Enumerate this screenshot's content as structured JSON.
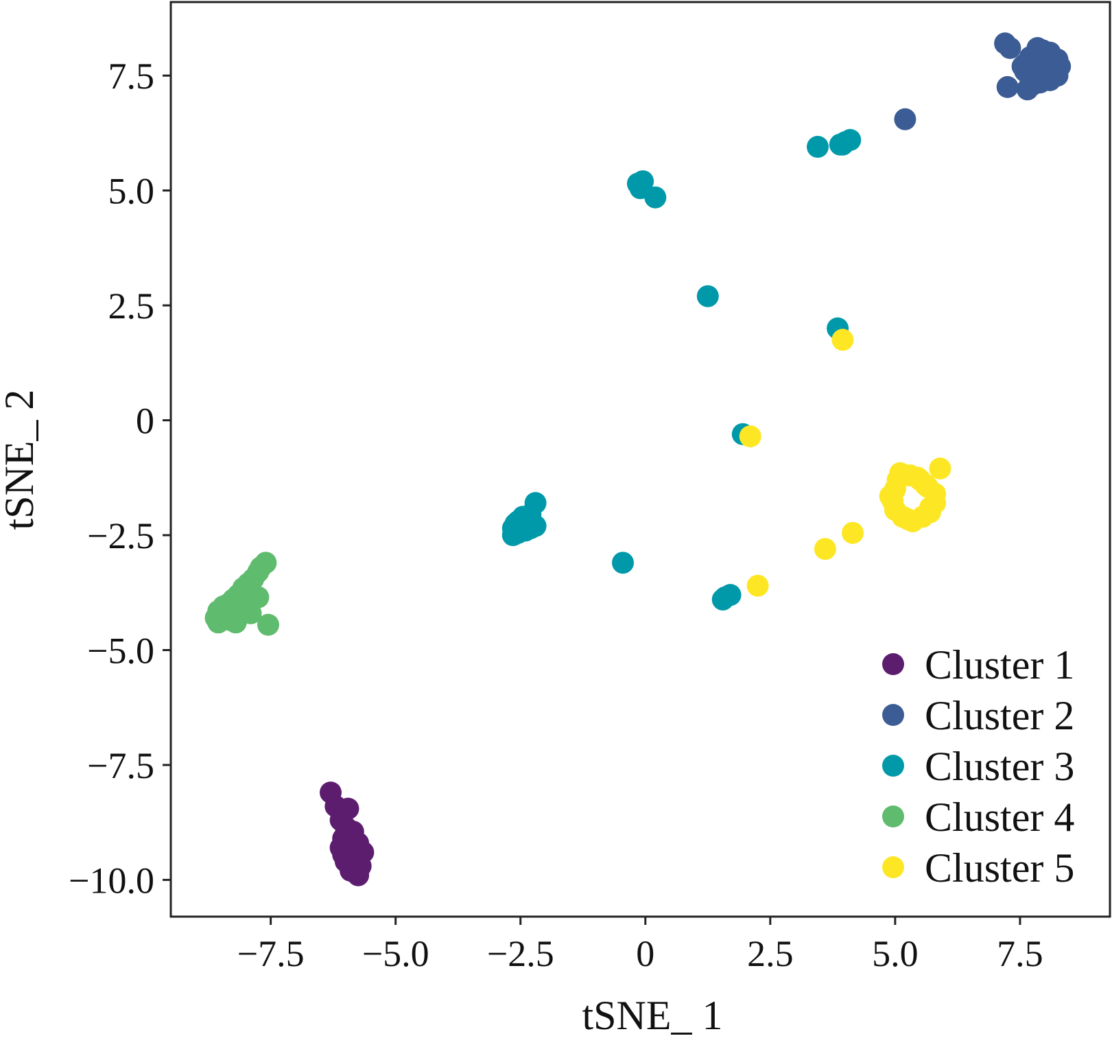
{
  "chart_data": {
    "type": "scatter",
    "title": "",
    "xlabel": "tSNE_ 1",
    "ylabel": "tSNE_ 2",
    "xlim": [
      -9.5,
      9.3
    ],
    "ylim": [
      -10.8,
      9.1
    ],
    "xticks": [
      -7.5,
      -5.0,
      -2.5,
      0,
      2.5,
      5.0,
      7.5
    ],
    "xtick_labels": [
      "−7.5",
      "−5.0",
      "−2.5",
      "0",
      "2.5",
      "5.0",
      "7.5"
    ],
    "yticks": [
      7.5,
      5.0,
      2.5,
      0,
      -2.5,
      -5.0,
      -7.5,
      -10.0
    ],
    "ytick_labels": [
      "7.5",
      "5.0",
      "2.5",
      "0",
      "−2.5",
      "−5.0",
      "−7.5",
      "−10.0"
    ],
    "grid": false,
    "legend_position": "bottom-right",
    "series": [
      {
        "name": "Cluster 1",
        "color": "#5c1d6f",
        "points": [
          [
            -6.3,
            -8.1
          ],
          [
            -6.2,
            -8.4
          ],
          [
            -5.95,
            -8.45
          ],
          [
            -6.1,
            -8.7
          ],
          [
            -6.0,
            -8.85
          ],
          [
            -5.85,
            -8.95
          ],
          [
            -5.95,
            -9.05
          ],
          [
            -6.05,
            -9.1
          ],
          [
            -5.75,
            -9.2
          ],
          [
            -6.1,
            -9.3
          ],
          [
            -5.9,
            -9.35
          ],
          [
            -5.65,
            -9.4
          ],
          [
            -5.95,
            -9.5
          ],
          [
            -6.0,
            -9.6
          ],
          [
            -5.8,
            -9.65
          ],
          [
            -5.9,
            -9.8
          ],
          [
            -5.75,
            -9.9
          ],
          [
            -5.7,
            -9.7
          ],
          [
            -6.05,
            -9.45
          ],
          [
            -5.8,
            -9.25
          ]
        ]
      },
      {
        "name": "Cluster 2",
        "color": "#3b5c94",
        "points": [
          [
            7.2,
            8.2
          ],
          [
            7.3,
            8.1
          ],
          [
            7.25,
            7.25
          ],
          [
            5.2,
            6.55
          ],
          [
            7.8,
            7.9
          ],
          [
            7.95,
            8.05
          ],
          [
            8.1,
            8.0
          ],
          [
            8.25,
            7.85
          ],
          [
            8.3,
            7.7
          ],
          [
            8.25,
            7.5
          ],
          [
            8.1,
            7.4
          ],
          [
            7.9,
            7.35
          ],
          [
            7.7,
            7.45
          ],
          [
            7.6,
            7.6
          ],
          [
            7.6,
            7.75
          ],
          [
            7.7,
            7.9
          ],
          [
            8.0,
            7.95
          ],
          [
            8.2,
            7.6
          ],
          [
            7.75,
            7.3
          ],
          [
            7.65,
            7.2
          ],
          [
            7.9,
            7.5
          ],
          [
            7.55,
            7.7
          ],
          [
            8.05,
            7.8
          ],
          [
            7.85,
            8.1
          ]
        ]
      },
      {
        "name": "Cluster 3",
        "color": "#0099aa",
        "points": [
          [
            3.45,
            5.95
          ],
          [
            3.9,
            6.0
          ],
          [
            4.0,
            6.05
          ],
          [
            4.1,
            6.1
          ],
          [
            3.95,
            6.0
          ],
          [
            -0.15,
            5.15
          ],
          [
            -0.05,
            5.2
          ],
          [
            -0.1,
            5.05
          ],
          [
            0.2,
            4.85
          ],
          [
            1.25,
            2.7
          ],
          [
            3.85,
            2.0
          ],
          [
            1.95,
            -0.3
          ],
          [
            -2.2,
            -1.8
          ],
          [
            -2.3,
            -2.05
          ],
          [
            -2.45,
            -2.1
          ],
          [
            -2.55,
            -2.2
          ],
          [
            -2.35,
            -2.25
          ],
          [
            -2.5,
            -2.3
          ],
          [
            -2.65,
            -2.35
          ],
          [
            -2.4,
            -2.4
          ],
          [
            -2.55,
            -2.45
          ],
          [
            -2.3,
            -2.35
          ],
          [
            -2.65,
            -2.5
          ],
          [
            -2.2,
            -2.3
          ],
          [
            -2.45,
            -2.2
          ],
          [
            -2.6,
            -2.25
          ],
          [
            -0.45,
            -3.1
          ],
          [
            1.55,
            -3.9
          ],
          [
            1.7,
            -3.8
          ],
          [
            1.6,
            -3.85
          ]
        ]
      },
      {
        "name": "Cluster 4",
        "color": "#5fbb6e",
        "points": [
          [
            -7.6,
            -3.1
          ],
          [
            -7.7,
            -3.2
          ],
          [
            -7.75,
            -3.3
          ],
          [
            -7.85,
            -3.45
          ],
          [
            -7.95,
            -3.55
          ],
          [
            -8.05,
            -3.65
          ],
          [
            -8.15,
            -3.8
          ],
          [
            -8.25,
            -3.9
          ],
          [
            -8.35,
            -4.0
          ],
          [
            -8.45,
            -4.05
          ],
          [
            -8.55,
            -4.15
          ],
          [
            -8.6,
            -4.3
          ],
          [
            -8.55,
            -4.4
          ],
          [
            -8.45,
            -4.3
          ],
          [
            -8.3,
            -4.35
          ],
          [
            -8.2,
            -4.4
          ],
          [
            -8.1,
            -4.2
          ],
          [
            -8.0,
            -4.1
          ],
          [
            -7.9,
            -4.2
          ],
          [
            -7.75,
            -3.85
          ],
          [
            -7.85,
            -3.9
          ],
          [
            -8.35,
            -4.2
          ],
          [
            -8.2,
            -4.05
          ],
          [
            -7.55,
            -4.45
          ],
          [
            -8.0,
            -3.95
          ],
          [
            -8.4,
            -4.1
          ],
          [
            -8.15,
            -3.95
          ],
          [
            -8.5,
            -4.25
          ]
        ]
      },
      {
        "name": "Cluster 5",
        "color": "#fde725",
        "points": [
          [
            3.95,
            1.75
          ],
          [
            2.1,
            -0.35
          ],
          [
            5.9,
            -1.05
          ],
          [
            4.15,
            -2.45
          ],
          [
            3.6,
            -2.8
          ],
          [
            2.25,
            -3.6
          ],
          [
            5.1,
            -1.15
          ],
          [
            5.3,
            -1.2
          ],
          [
            5.5,
            -1.3
          ],
          [
            5.65,
            -1.45
          ],
          [
            5.8,
            -1.6
          ],
          [
            5.8,
            -1.8
          ],
          [
            5.7,
            -2.0
          ],
          [
            5.55,
            -2.1
          ],
          [
            5.35,
            -2.2
          ],
          [
            5.15,
            -2.1
          ],
          [
            5.0,
            -1.95
          ],
          [
            4.95,
            -1.75
          ],
          [
            5.0,
            -1.5
          ],
          [
            5.05,
            -1.3
          ],
          [
            5.45,
            -1.25
          ],
          [
            5.7,
            -1.9
          ],
          [
            5.25,
            -2.15
          ],
          [
            4.9,
            -1.65
          ],
          [
            5.6,
            -1.4
          ]
        ]
      }
    ]
  }
}
